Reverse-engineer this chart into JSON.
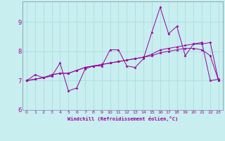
{
  "xlabel": "Windchill (Refroidissement éolien,°C)",
  "ylabel": "",
  "bg_color": "#c8eef0",
  "line_color": "#990099",
  "grid_color": "#aadddd",
  "xlim": [
    -0.5,
    23.5
  ],
  "ylim": [
    6.0,
    9.7
  ],
  "yticks": [
    6,
    7,
    8,
    9
  ],
  "xticks": [
    0,
    1,
    2,
    3,
    4,
    5,
    6,
    7,
    8,
    9,
    10,
    11,
    12,
    13,
    14,
    15,
    16,
    17,
    18,
    19,
    20,
    21,
    22,
    23
  ],
  "lines": [
    [
      7.0,
      7.2,
      7.1,
      7.15,
      7.6,
      6.65,
      6.75,
      7.4,
      7.5,
      7.5,
      8.05,
      8.05,
      7.5,
      7.45,
      7.75,
      8.65,
      9.5,
      8.6,
      8.85,
      7.85,
      8.25,
      8.3,
      7.0,
      7.05
    ],
    [
      7.0,
      7.05,
      7.1,
      7.2,
      7.25,
      7.25,
      7.35,
      7.45,
      7.5,
      7.55,
      7.6,
      7.65,
      7.7,
      7.75,
      7.8,
      7.9,
      8.05,
      8.1,
      8.15,
      8.2,
      8.25,
      8.25,
      8.3,
      7.0
    ],
    [
      7.0,
      7.05,
      7.1,
      7.2,
      7.25,
      7.25,
      7.35,
      7.45,
      7.5,
      7.55,
      7.6,
      7.65,
      7.7,
      7.75,
      7.8,
      7.85,
      7.95,
      8.0,
      8.05,
      8.1,
      8.1,
      8.05,
      7.85,
      7.0
    ]
  ]
}
